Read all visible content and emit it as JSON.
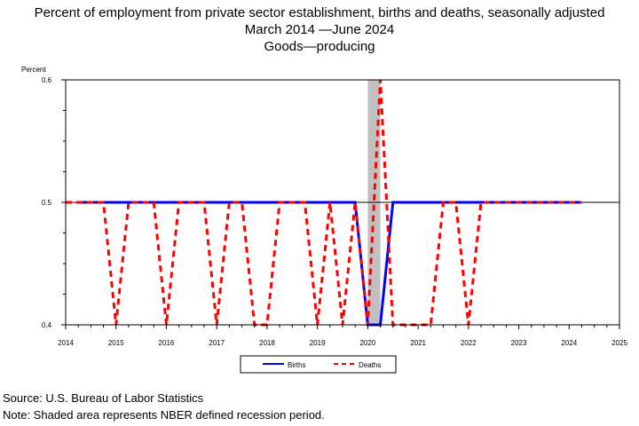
{
  "header": {
    "title": "Percent of employment from private sector establishment, births and deaths, seasonally adjusted",
    "subtitle": "March 2014 —June 2024",
    "subtitle2": "Goods—producing"
  },
  "footer": {
    "source": "Source: U.S. Bureau of Labor Statistics",
    "note": "Note: Shaded area represents NBER defined recession period."
  },
  "chart_data": {
    "type": "line",
    "title": "Percent of employment from private sector establishment, births and deaths, seasonally adjusted",
    "ylabel": "Percent",
    "xlabel": "",
    "xlim": [
      2014,
      2025
    ],
    "ylim": [
      0.4,
      0.6
    ],
    "yticks": [
      "0.4",
      "0.5",
      "0.6"
    ],
    "xticks": [
      "2014",
      "2015",
      "2016",
      "2017",
      "2018",
      "2019",
      "2020",
      "2021",
      "2022",
      "2023",
      "2024",
      "2025"
    ],
    "reference_line": 0.5,
    "recession": [
      2020.0,
      2020.25
    ],
    "legend_placement": "bottom-center",
    "colors": {
      "births": "#0000ff",
      "deaths": "#ff0000",
      "recession": "#c0c0c0"
    },
    "series": [
      {
        "name": "Births",
        "points": [
          [
            2014.25,
            0.5
          ],
          [
            2014.5,
            0.5
          ],
          [
            2014.75,
            0.5
          ],
          [
            2015.0,
            0.5
          ],
          [
            2015.25,
            0.5
          ],
          [
            2015.5,
            0.5
          ],
          [
            2015.75,
            0.5
          ],
          [
            2016.0,
            0.5
          ],
          [
            2016.25,
            0.5
          ],
          [
            2016.5,
            0.5
          ],
          [
            2016.75,
            0.5
          ],
          [
            2017.0,
            0.5
          ],
          [
            2017.25,
            0.5
          ],
          [
            2017.5,
            0.5
          ],
          [
            2017.75,
            0.5
          ],
          [
            2018.0,
            0.5
          ],
          [
            2018.25,
            0.5
          ],
          [
            2018.5,
            0.5
          ],
          [
            2018.75,
            0.5
          ],
          [
            2019.0,
            0.5
          ],
          [
            2019.25,
            0.5
          ],
          [
            2019.5,
            0.5
          ],
          [
            2019.75,
            0.5
          ],
          [
            2020.0,
            0.4
          ],
          [
            2020.25,
            0.4
          ],
          [
            2020.5,
            0.5
          ],
          [
            2020.75,
            0.5
          ],
          [
            2021.0,
            0.5
          ],
          [
            2021.25,
            0.5
          ],
          [
            2021.5,
            0.5
          ],
          [
            2021.75,
            0.5
          ],
          [
            2022.0,
            0.5
          ],
          [
            2022.25,
            0.5
          ],
          [
            2022.5,
            0.5
          ],
          [
            2022.75,
            0.5
          ],
          [
            2023.0,
            0.5
          ],
          [
            2023.25,
            0.5
          ],
          [
            2023.5,
            0.5
          ],
          [
            2023.75,
            0.5
          ],
          [
            2024.0,
            0.5
          ],
          [
            2024.25,
            0.5
          ]
        ]
      },
      {
        "name": "Deaths",
        "points": [
          [
            2014.0,
            0.5
          ],
          [
            2014.25,
            0.5
          ],
          [
            2014.5,
            0.5
          ],
          [
            2014.75,
            0.5
          ],
          [
            2015.0,
            0.4
          ],
          [
            2015.25,
            0.5
          ],
          [
            2015.5,
            0.5
          ],
          [
            2015.75,
            0.5
          ],
          [
            2016.0,
            0.4
          ],
          [
            2016.25,
            0.5
          ],
          [
            2016.5,
            0.5
          ],
          [
            2016.75,
            0.5
          ],
          [
            2017.0,
            0.4
          ],
          [
            2017.25,
            0.5
          ],
          [
            2017.5,
            0.5
          ],
          [
            2017.75,
            0.4
          ],
          [
            2018.0,
            0.4
          ],
          [
            2018.25,
            0.5
          ],
          [
            2018.5,
            0.5
          ],
          [
            2018.75,
            0.5
          ],
          [
            2019.0,
            0.4
          ],
          [
            2019.25,
            0.5
          ],
          [
            2019.5,
            0.4
          ],
          [
            2019.75,
            0.5
          ],
          [
            2020.0,
            0.4
          ],
          [
            2020.25,
            0.6
          ],
          [
            2020.5,
            0.4
          ],
          [
            2020.75,
            0.4
          ],
          [
            2021.0,
            0.4
          ],
          [
            2021.25,
            0.4
          ],
          [
            2021.5,
            0.5
          ],
          [
            2021.75,
            0.5
          ],
          [
            2022.0,
            0.4
          ],
          [
            2022.25,
            0.5
          ],
          [
            2022.5,
            0.5
          ],
          [
            2022.75,
            0.5
          ],
          [
            2023.0,
            0.5
          ],
          [
            2023.25,
            0.5
          ],
          [
            2023.5,
            0.5
          ],
          [
            2023.75,
            0.5
          ],
          [
            2024.0,
            0.5
          ],
          [
            2024.25,
            0.5
          ]
        ]
      }
    ]
  }
}
